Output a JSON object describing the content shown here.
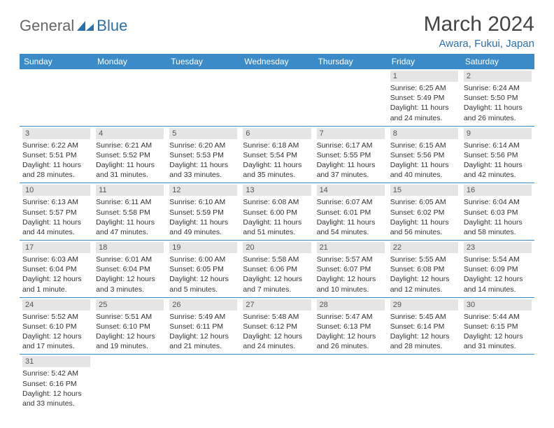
{
  "brand": {
    "part1": "General",
    "part2": "Blue"
  },
  "title": "March 2024",
  "location": "Awara, Fukui, Japan",
  "colors": {
    "header_bg": "#3b8bc9",
    "header_text": "#ffffff",
    "daynum_bg": "#e5e5e5",
    "border": "#3b8bc9",
    "brand_blue": "#2b6fab",
    "brand_gray": "#666666"
  },
  "weekdays": [
    "Sunday",
    "Monday",
    "Tuesday",
    "Wednesday",
    "Thursday",
    "Friday",
    "Saturday"
  ],
  "weeks": [
    [
      null,
      null,
      null,
      null,
      null,
      {
        "n": "1",
        "sr": "Sunrise: 6:25 AM",
        "ss": "Sunset: 5:49 PM",
        "d1": "Daylight: 11 hours",
        "d2": "and 24 minutes."
      },
      {
        "n": "2",
        "sr": "Sunrise: 6:24 AM",
        "ss": "Sunset: 5:50 PM",
        "d1": "Daylight: 11 hours",
        "d2": "and 26 minutes."
      }
    ],
    [
      {
        "n": "3",
        "sr": "Sunrise: 6:22 AM",
        "ss": "Sunset: 5:51 PM",
        "d1": "Daylight: 11 hours",
        "d2": "and 28 minutes."
      },
      {
        "n": "4",
        "sr": "Sunrise: 6:21 AM",
        "ss": "Sunset: 5:52 PM",
        "d1": "Daylight: 11 hours",
        "d2": "and 31 minutes."
      },
      {
        "n": "5",
        "sr": "Sunrise: 6:20 AM",
        "ss": "Sunset: 5:53 PM",
        "d1": "Daylight: 11 hours",
        "d2": "and 33 minutes."
      },
      {
        "n": "6",
        "sr": "Sunrise: 6:18 AM",
        "ss": "Sunset: 5:54 PM",
        "d1": "Daylight: 11 hours",
        "d2": "and 35 minutes."
      },
      {
        "n": "7",
        "sr": "Sunrise: 6:17 AM",
        "ss": "Sunset: 5:55 PM",
        "d1": "Daylight: 11 hours",
        "d2": "and 37 minutes."
      },
      {
        "n": "8",
        "sr": "Sunrise: 6:15 AM",
        "ss": "Sunset: 5:56 PM",
        "d1": "Daylight: 11 hours",
        "d2": "and 40 minutes."
      },
      {
        "n": "9",
        "sr": "Sunrise: 6:14 AM",
        "ss": "Sunset: 5:56 PM",
        "d1": "Daylight: 11 hours",
        "d2": "and 42 minutes."
      }
    ],
    [
      {
        "n": "10",
        "sr": "Sunrise: 6:13 AM",
        "ss": "Sunset: 5:57 PM",
        "d1": "Daylight: 11 hours",
        "d2": "and 44 minutes."
      },
      {
        "n": "11",
        "sr": "Sunrise: 6:11 AM",
        "ss": "Sunset: 5:58 PM",
        "d1": "Daylight: 11 hours",
        "d2": "and 47 minutes."
      },
      {
        "n": "12",
        "sr": "Sunrise: 6:10 AM",
        "ss": "Sunset: 5:59 PM",
        "d1": "Daylight: 11 hours",
        "d2": "and 49 minutes."
      },
      {
        "n": "13",
        "sr": "Sunrise: 6:08 AM",
        "ss": "Sunset: 6:00 PM",
        "d1": "Daylight: 11 hours",
        "d2": "and 51 minutes."
      },
      {
        "n": "14",
        "sr": "Sunrise: 6:07 AM",
        "ss": "Sunset: 6:01 PM",
        "d1": "Daylight: 11 hours",
        "d2": "and 54 minutes."
      },
      {
        "n": "15",
        "sr": "Sunrise: 6:05 AM",
        "ss": "Sunset: 6:02 PM",
        "d1": "Daylight: 11 hours",
        "d2": "and 56 minutes."
      },
      {
        "n": "16",
        "sr": "Sunrise: 6:04 AM",
        "ss": "Sunset: 6:03 PM",
        "d1": "Daylight: 11 hours",
        "d2": "and 58 minutes."
      }
    ],
    [
      {
        "n": "17",
        "sr": "Sunrise: 6:03 AM",
        "ss": "Sunset: 6:04 PM",
        "d1": "Daylight: 12 hours",
        "d2": "and 1 minute."
      },
      {
        "n": "18",
        "sr": "Sunrise: 6:01 AM",
        "ss": "Sunset: 6:04 PM",
        "d1": "Daylight: 12 hours",
        "d2": "and 3 minutes."
      },
      {
        "n": "19",
        "sr": "Sunrise: 6:00 AM",
        "ss": "Sunset: 6:05 PM",
        "d1": "Daylight: 12 hours",
        "d2": "and 5 minutes."
      },
      {
        "n": "20",
        "sr": "Sunrise: 5:58 AM",
        "ss": "Sunset: 6:06 PM",
        "d1": "Daylight: 12 hours",
        "d2": "and 7 minutes."
      },
      {
        "n": "21",
        "sr": "Sunrise: 5:57 AM",
        "ss": "Sunset: 6:07 PM",
        "d1": "Daylight: 12 hours",
        "d2": "and 10 minutes."
      },
      {
        "n": "22",
        "sr": "Sunrise: 5:55 AM",
        "ss": "Sunset: 6:08 PM",
        "d1": "Daylight: 12 hours",
        "d2": "and 12 minutes."
      },
      {
        "n": "23",
        "sr": "Sunrise: 5:54 AM",
        "ss": "Sunset: 6:09 PM",
        "d1": "Daylight: 12 hours",
        "d2": "and 14 minutes."
      }
    ],
    [
      {
        "n": "24",
        "sr": "Sunrise: 5:52 AM",
        "ss": "Sunset: 6:10 PM",
        "d1": "Daylight: 12 hours",
        "d2": "and 17 minutes."
      },
      {
        "n": "25",
        "sr": "Sunrise: 5:51 AM",
        "ss": "Sunset: 6:10 PM",
        "d1": "Daylight: 12 hours",
        "d2": "and 19 minutes."
      },
      {
        "n": "26",
        "sr": "Sunrise: 5:49 AM",
        "ss": "Sunset: 6:11 PM",
        "d1": "Daylight: 12 hours",
        "d2": "and 21 minutes."
      },
      {
        "n": "27",
        "sr": "Sunrise: 5:48 AM",
        "ss": "Sunset: 6:12 PM",
        "d1": "Daylight: 12 hours",
        "d2": "and 24 minutes."
      },
      {
        "n": "28",
        "sr": "Sunrise: 5:47 AM",
        "ss": "Sunset: 6:13 PM",
        "d1": "Daylight: 12 hours",
        "d2": "and 26 minutes."
      },
      {
        "n": "29",
        "sr": "Sunrise: 5:45 AM",
        "ss": "Sunset: 6:14 PM",
        "d1": "Daylight: 12 hours",
        "d2": "and 28 minutes."
      },
      {
        "n": "30",
        "sr": "Sunrise: 5:44 AM",
        "ss": "Sunset: 6:15 PM",
        "d1": "Daylight: 12 hours",
        "d2": "and 31 minutes."
      }
    ],
    [
      {
        "n": "31",
        "sr": "Sunrise: 5:42 AM",
        "ss": "Sunset: 6:16 PM",
        "d1": "Daylight: 12 hours",
        "d2": "and 33 minutes."
      },
      null,
      null,
      null,
      null,
      null,
      null
    ]
  ]
}
